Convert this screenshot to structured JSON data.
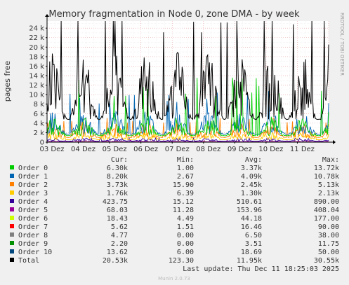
{
  "chart_data": {
    "type": "line",
    "title": "Memory fragmentation in Node 0, zone DMA - by week",
    "ylabel": "pages free",
    "side_label": "RRDTOOL / TOBI OETIKER",
    "x_ticks": [
      "03 Dez",
      "04 Dez",
      "05 Dez",
      "06 Dez",
      "07 Dez",
      "08 Dez",
      "09 Dez",
      "10 Dez",
      "11 Dez"
    ],
    "y_ticks": [
      "0",
      "2 k",
      "4 k",
      "6 k",
      "8 k",
      "10 k",
      "12 k",
      "14 k",
      "16 k",
      "18 k",
      "20 k",
      "22 k",
      "24 k"
    ],
    "ylim": [
      0,
      25500
    ],
    "grid": true,
    "legend_headers": [
      "Cur:",
      "Min:",
      "Avg:",
      "Max:"
    ],
    "series": [
      {
        "name": "Order 0",
        "color": "#00cc00",
        "cur": "6.30k",
        "min": "1.00",
        "avg": "3.37k",
        "max": "13.72k",
        "cur_val": 6300,
        "min_val": 1,
        "avg_val": 3370,
        "max_val": 13720
      },
      {
        "name": "Order 1",
        "color": "#0066b3",
        "cur": "8.20k",
        "min": "2.67",
        "avg": "4.09k",
        "max": "10.78k",
        "cur_val": 8200,
        "min_val": 2.67,
        "avg_val": 4090,
        "max_val": 10780
      },
      {
        "name": "Order 2",
        "color": "#ff8000",
        "cur": "3.73k",
        "min": "15.90",
        "avg": "2.45k",
        "max": "5.13k",
        "cur_val": 3730,
        "min_val": 15.9,
        "avg_val": 2450,
        "max_val": 5130
      },
      {
        "name": "Order 3",
        "color": "#ffcc00",
        "cur": "1.76k",
        "min": "6.39",
        "avg": "1.30k",
        "max": "2.13k",
        "cur_val": 1760,
        "min_val": 6.39,
        "avg_val": 1300,
        "max_val": 2130
      },
      {
        "name": "Order 4",
        "color": "#330099",
        "cur": "423.75",
        "min": "15.12",
        "avg": "510.61",
        "max": "890.00",
        "cur_val": 423.75,
        "min_val": 15.12,
        "avg_val": 510.61,
        "max_val": 890
      },
      {
        "name": "Order 5",
        "color": "#990099",
        "cur": "68.03",
        "min": "11.28",
        "avg": "153.96",
        "max": "408.04",
        "cur_val": 68.03,
        "min_val": 11.28,
        "avg_val": 153.96,
        "max_val": 408.04
      },
      {
        "name": "Order 6",
        "color": "#ccff00",
        "cur": "18.43",
        "min": "4.49",
        "avg": "44.18",
        "max": "177.00",
        "cur_val": 18.43,
        "min_val": 4.49,
        "avg_val": 44.18,
        "max_val": 177
      },
      {
        "name": "Order 7",
        "color": "#ff0000",
        "cur": "5.62",
        "min": "1.51",
        "avg": "16.46",
        "max": "90.00",
        "cur_val": 5.62,
        "min_val": 1.51,
        "avg_val": 16.46,
        "max_val": 90
      },
      {
        "name": "Order 8",
        "color": "#808080",
        "cur": "4.77",
        "min": "0.00",
        "avg": "6.50",
        "max": "38.00",
        "cur_val": 4.77,
        "min_val": 0,
        "avg_val": 6.5,
        "max_val": 38
      },
      {
        "name": "Order 9",
        "color": "#008f00",
        "cur": "2.20",
        "min": "0.00",
        "avg": "3.51",
        "max": "11.75",
        "cur_val": 2.2,
        "min_val": 0,
        "avg_val": 3.51,
        "max_val": 11.75
      },
      {
        "name": "Order 10",
        "color": "#00487d",
        "cur": "13.62",
        "min": "6.00",
        "avg": "18.69",
        "max": "50.00",
        "cur_val": 13.62,
        "min_val": 6,
        "avg_val": 18.69,
        "max_val": 50
      },
      {
        "name": "Total",
        "color": "#000000",
        "cur": "20.53k",
        "min": "123.30",
        "avg": "11.95k",
        "max": "30.55k",
        "cur_val": 20530,
        "min_val": 123.3,
        "avg_val": 11950,
        "max_val": 30550
      }
    ]
  },
  "footer": {
    "last_update": "Last update: Thu Dec 11 18:25:03 2025",
    "munin_version": "Munin 2.0.73"
  }
}
